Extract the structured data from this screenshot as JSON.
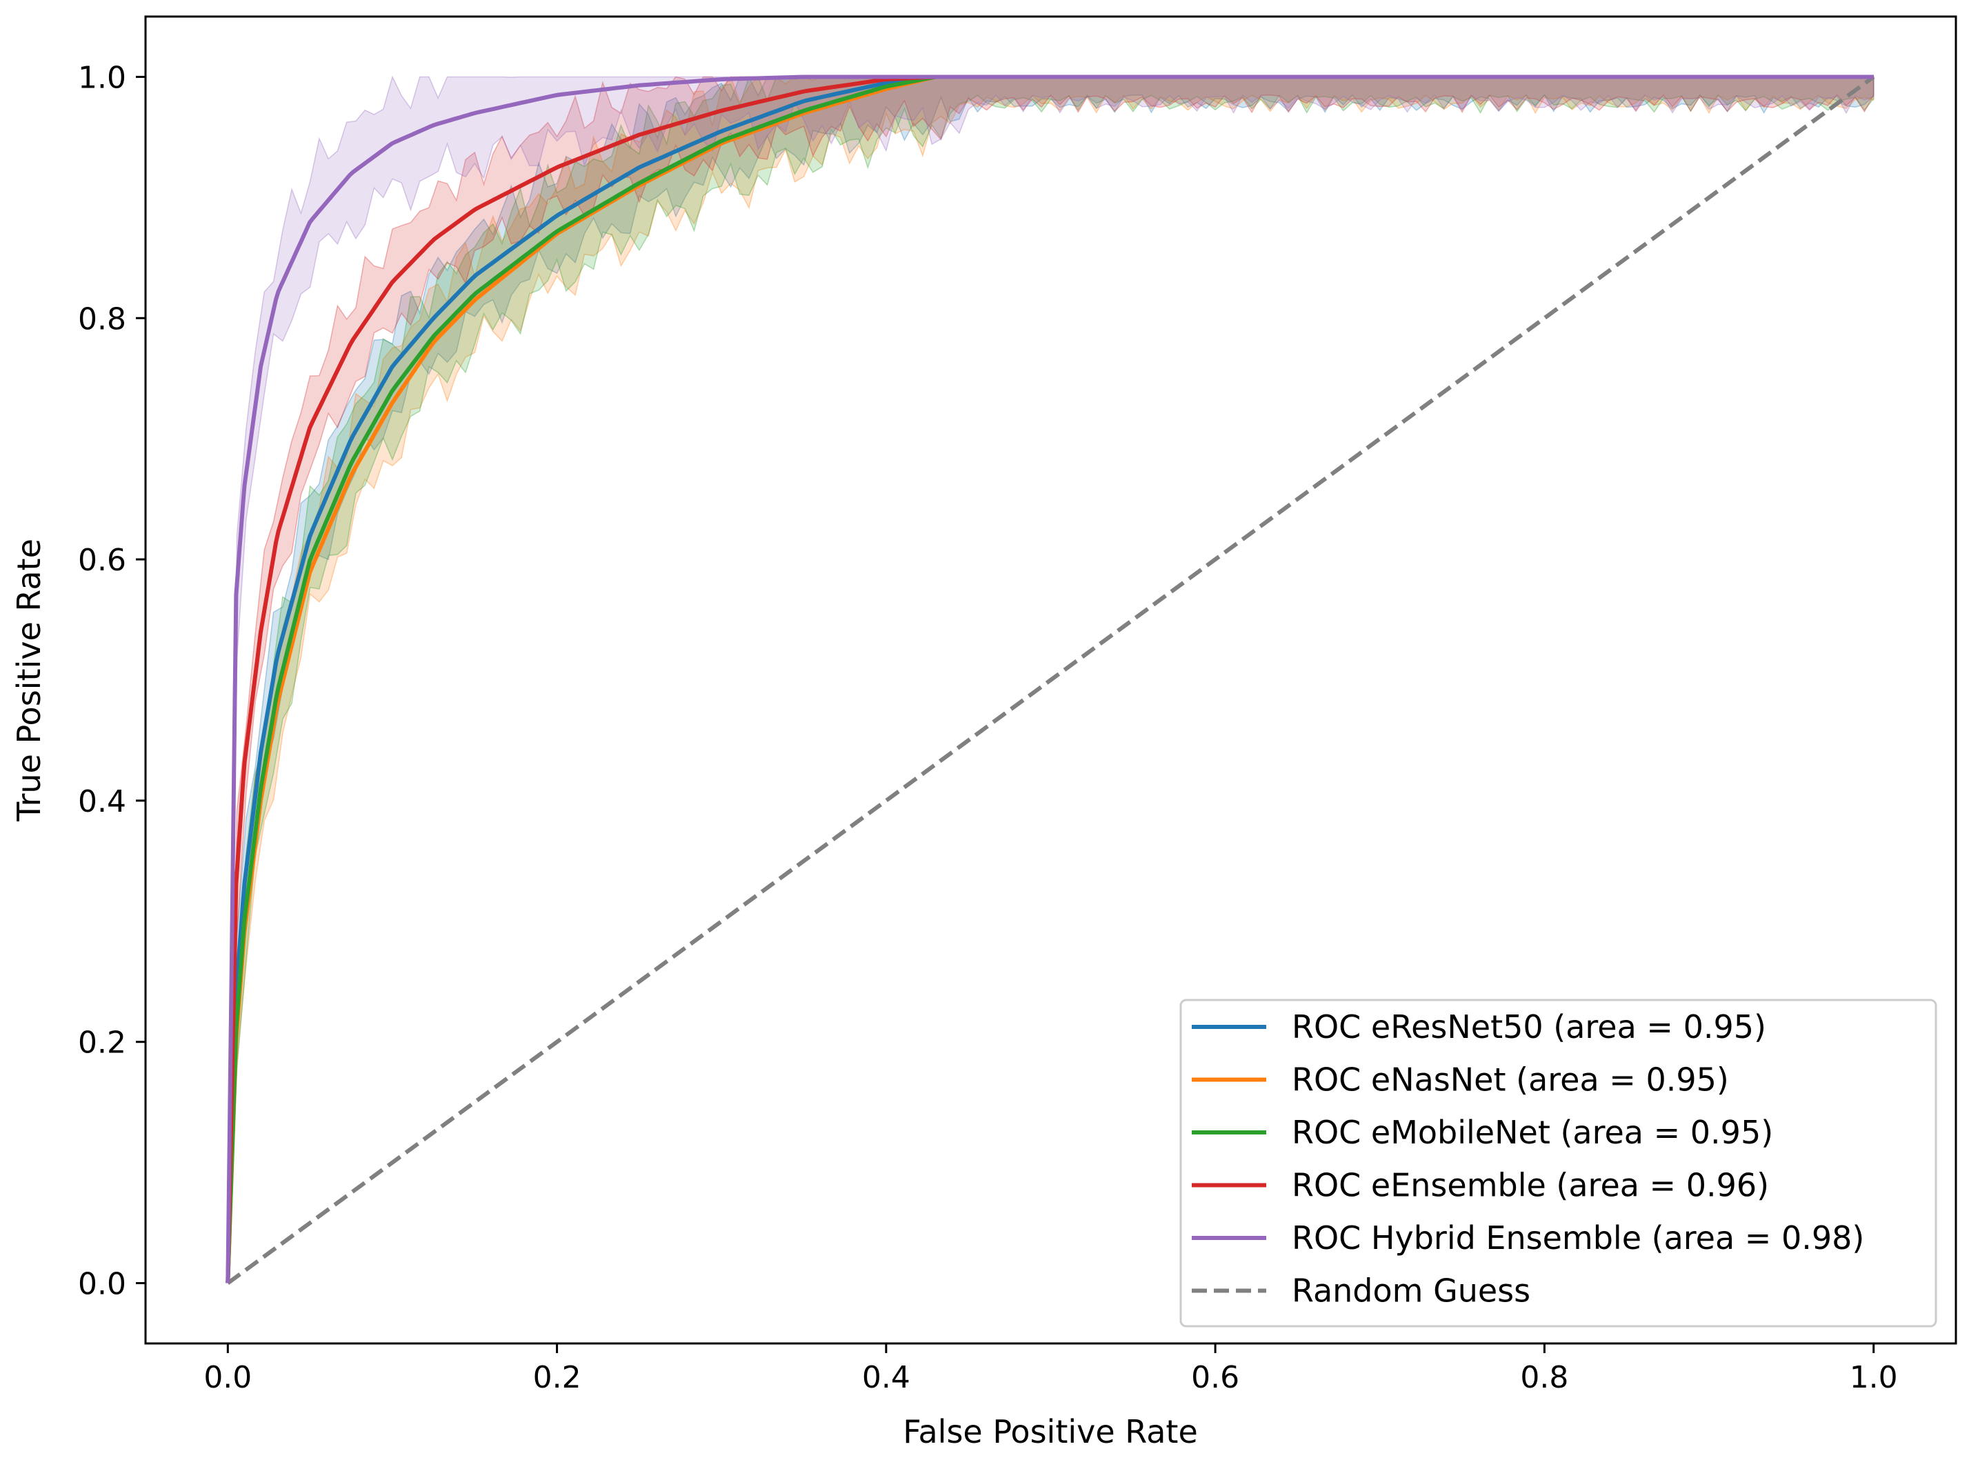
{
  "chart_data": {
    "type": "line",
    "title": "",
    "xlabel": "False Positive Rate",
    "ylabel": "True Positive Rate",
    "xlim": [
      -0.05,
      1.05
    ],
    "ylim": [
      -0.05,
      1.05
    ],
    "xticks": [
      0.0,
      0.2,
      0.4,
      0.6,
      0.8,
      1.0
    ],
    "yticks": [
      0.0,
      0.2,
      0.4,
      0.6,
      0.8,
      1.0
    ],
    "xtick_labels": [
      "0.0",
      "0.2",
      "0.4",
      "0.6",
      "0.8",
      "1.0"
    ],
    "ytick_labels": [
      "0.0",
      "0.2",
      "0.4",
      "0.6",
      "0.8",
      "1.0"
    ],
    "grid": false,
    "legend_position": "lower-right",
    "series": [
      {
        "name": "ROC eResNet50 (area = 0.95)",
        "color": "#1f77b4",
        "x": [
          0.0,
          0.005,
          0.01,
          0.02,
          0.03,
          0.05,
          0.075,
          0.1,
          0.125,
          0.15,
          0.2,
          0.25,
          0.3,
          0.35,
          0.4,
          0.43,
          0.5,
          0.6,
          0.7,
          0.8,
          0.9,
          1.0
        ],
        "y": [
          0.0,
          0.24,
          0.33,
          0.44,
          0.52,
          0.62,
          0.7,
          0.76,
          0.8,
          0.835,
          0.885,
          0.925,
          0.955,
          0.98,
          0.995,
          1.0,
          1.0,
          1.0,
          1.0,
          1.0,
          1.0,
          1.0
        ],
        "band_width": 0.04
      },
      {
        "name": "ROC eNasNet (area = 0.95)",
        "color": "#ff7f0e",
        "x": [
          0.0,
          0.005,
          0.01,
          0.02,
          0.03,
          0.05,
          0.075,
          0.1,
          0.125,
          0.15,
          0.2,
          0.25,
          0.3,
          0.35,
          0.4,
          0.43,
          0.5,
          0.6,
          0.7,
          0.8,
          0.9,
          1.0
        ],
        "y": [
          0.0,
          0.2,
          0.29,
          0.4,
          0.48,
          0.59,
          0.67,
          0.73,
          0.78,
          0.815,
          0.87,
          0.91,
          0.945,
          0.97,
          0.99,
          1.0,
          1.0,
          1.0,
          1.0,
          1.0,
          1.0,
          1.0
        ],
        "band_width": 0.045
      },
      {
        "name": "ROC eMobileNet (area = 0.95)",
        "color": "#2ca02c",
        "x": [
          0.0,
          0.005,
          0.01,
          0.02,
          0.03,
          0.05,
          0.075,
          0.1,
          0.125,
          0.15,
          0.2,
          0.25,
          0.3,
          0.35,
          0.4,
          0.43,
          0.5,
          0.6,
          0.7,
          0.8,
          0.9,
          1.0
        ],
        "y": [
          0.0,
          0.21,
          0.3,
          0.41,
          0.49,
          0.6,
          0.68,
          0.74,
          0.785,
          0.82,
          0.872,
          0.912,
          0.947,
          0.972,
          0.992,
          1.0,
          1.0,
          1.0,
          1.0,
          1.0,
          1.0,
          1.0
        ],
        "band_width": 0.045
      },
      {
        "name": "ROC eEnsemble (area = 0.96)",
        "color": "#d62728",
        "x": [
          0.0,
          0.005,
          0.01,
          0.02,
          0.03,
          0.05,
          0.075,
          0.1,
          0.125,
          0.15,
          0.2,
          0.25,
          0.3,
          0.35,
          0.4,
          0.43,
          0.5,
          0.6,
          0.7,
          0.8,
          0.9,
          1.0
        ],
        "y": [
          0.0,
          0.33,
          0.43,
          0.54,
          0.62,
          0.71,
          0.78,
          0.83,
          0.865,
          0.89,
          0.925,
          0.952,
          0.972,
          0.988,
          0.998,
          1.0,
          1.0,
          1.0,
          1.0,
          1.0,
          1.0,
          1.0
        ],
        "band_width": 0.04
      },
      {
        "name": "ROC Hybrid Ensemble (area = 0.98)",
        "color": "#9467bd",
        "x": [
          0.0,
          0.005,
          0.01,
          0.02,
          0.03,
          0.05,
          0.075,
          0.1,
          0.125,
          0.15,
          0.2,
          0.25,
          0.3,
          0.35,
          0.4,
          0.43,
          0.5,
          0.6,
          0.7,
          0.8,
          0.9,
          1.0
        ],
        "y": [
          0.0,
          0.57,
          0.66,
          0.76,
          0.82,
          0.88,
          0.92,
          0.945,
          0.96,
          0.97,
          0.985,
          0.993,
          0.998,
          1.0,
          1.0,
          1.0,
          1.0,
          1.0,
          1.0,
          1.0,
          1.0,
          1.0
        ],
        "band_width": 0.045
      }
    ],
    "reference": {
      "name": "Random Guess",
      "color": "#808080",
      "style": "dashed",
      "x": [
        0.0,
        1.0
      ],
      "y": [
        0.0,
        1.0
      ]
    }
  }
}
